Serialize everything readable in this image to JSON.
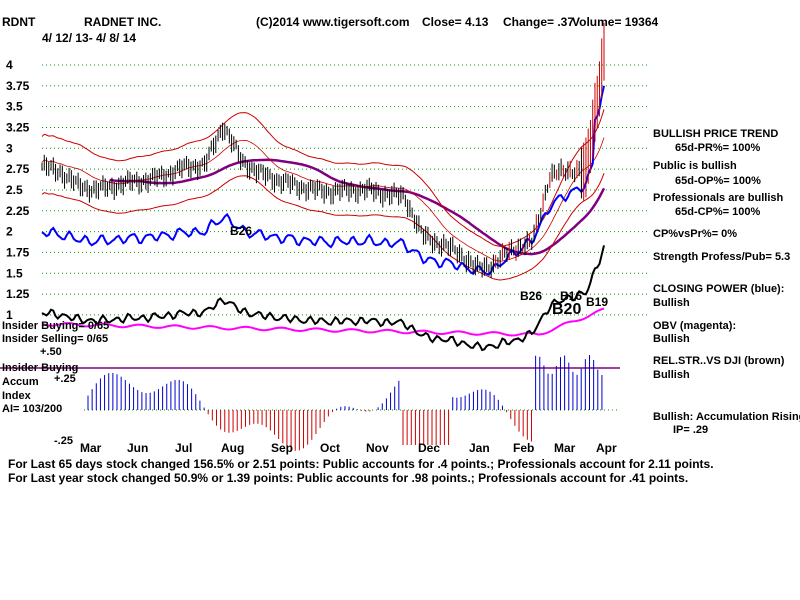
{
  "header": {
    "ticker": "RDNT",
    "company": "RADNET INC.",
    "source": "(C)2014 www.tigersoft.com",
    "close_text": "Close=  4.13",
    "change_text": "Change= .37",
    "volume_text": "Volume= 19364",
    "date_range": "4/ 12/ 13- 4/ 8/ 14"
  },
  "chart_data": {
    "type": "line",
    "title": "RADNET INC.",
    "price_axis": {
      "ticks": [
        "4",
        "3.75",
        "3.5",
        "3.25",
        "3",
        "2.75",
        "2.5",
        "2.25",
        "2",
        "1.75",
        "1.5",
        "1.25",
        "1"
      ],
      "ylim": [
        1,
        4
      ]
    },
    "x": {
      "months": [
        "Mar",
        "Jun",
        "Jul",
        "Aug",
        "Sep",
        "Oct",
        "Nov",
        "Dec",
        "Jan",
        "Feb",
        "Mar",
        "Apr"
      ]
    },
    "closes": [
      2.78,
      2.72,
      2.55,
      2.5,
      2.55,
      2.6,
      2.62,
      2.7,
      2.78,
      2.8,
      3.28,
      2.85,
      2.7,
      2.62,
      2.55,
      2.5,
      2.48,
      2.5,
      2.5,
      2.45,
      2.42,
      1.95,
      1.85,
      1.75,
      1.55,
      1.62,
      1.8,
      1.85,
      2.65,
      2.75,
      2.7,
      4.13
    ],
    "series": [
      {
        "name": "Closing Power",
        "color": "#0000ff"
      },
      {
        "name": "OBV",
        "color": "#ff00ff"
      },
      {
        "name": "Rel. Str. vs DJI",
        "color": "#000000"
      }
    ],
    "signals": [
      "B26",
      "B26",
      "B16",
      "B19",
      "B20"
    ],
    "insider": {
      "buying": "Insider Buying= 0/65",
      "selling": "Insider Selling= 0/65",
      "level": "+.50",
      "section": "Insider Buying"
    },
    "accum": {
      "label1": "Accum",
      "label2": "Index",
      "ai": "AI= 103/200",
      "ticks": [
        "+.25",
        "-.25"
      ]
    }
  },
  "indicators": {
    "trend_title": "BULLISH PRICE TREND",
    "pr": "65d-PR%= 100%",
    "public": "Public is bullish",
    "op": "65d-OP%= 100%",
    "pros": "Professionals are bullish",
    "cp": "65d-CP%= 100%",
    "cpvspr": "CP%vsPr%=  0%",
    "strength": "Strength Profess/Pub= 5.3",
    "closing_power": "CLOSING POWER (blue):",
    "closing_power_val": "Bullish",
    "obv": "OBV (magenta):",
    "obv_val": "Bullish",
    "relstr": "REL.STR..VS DJI (brown)",
    "relstr_val": "Bullish",
    "accum_title": "Bullish: Accumulation Rising",
    "ip": "IP=  .29"
  },
  "footer": {
    "line1": "For Last 65 days stock changed  156.5% or  2.51 points:  Public accounts for  .4 points.;  Professionals account for  2.11 points.",
    "line2": "For Last year stock changed  50.9% or  1.39 points:  Public accounts for  .98 points.;  Professionals account for  .41 points."
  },
  "colors": {
    "price": "#000000",
    "bands": "#cc0000",
    "ma": "#800080",
    "grid": "#009900",
    "accum_pos": "#0000cc",
    "accum_neg": "#cc0000"
  }
}
